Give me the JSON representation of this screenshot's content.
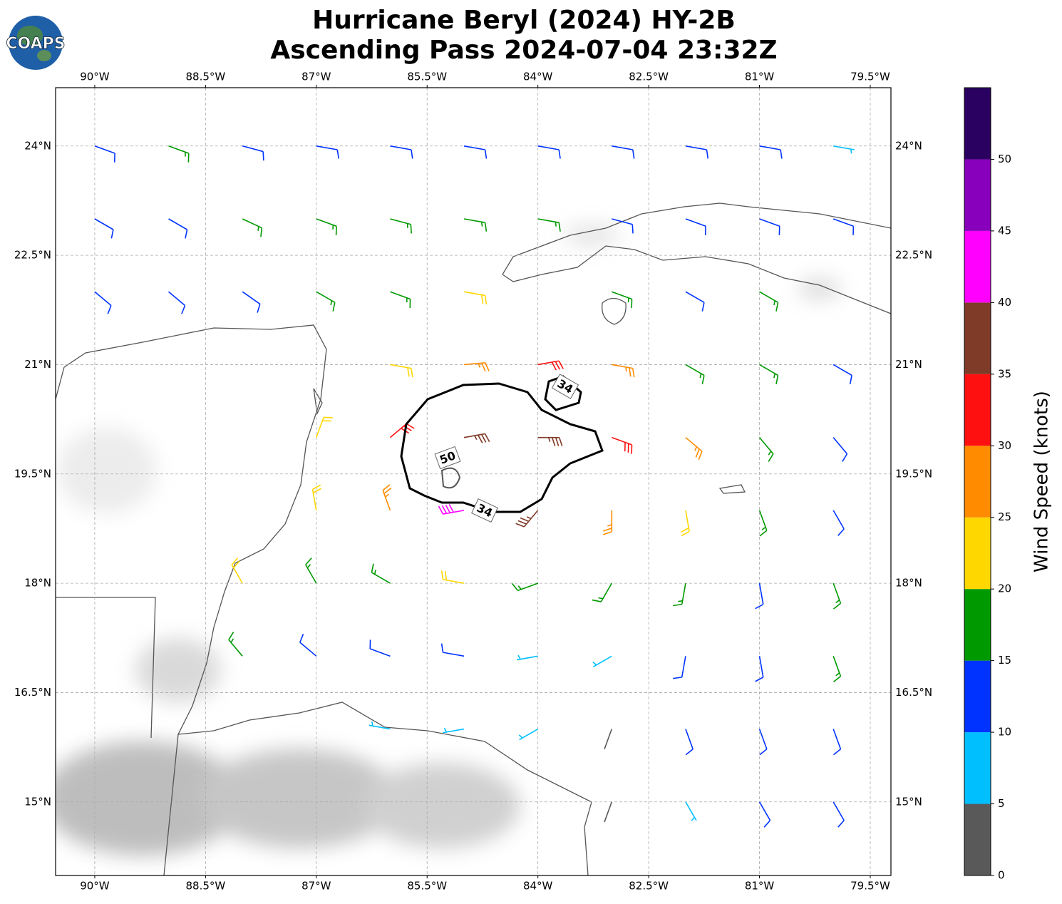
{
  "title": [
    "Hurricane Beryl (2024) HY-2B",
    "Ascending Pass 2024-07-04 23:32Z"
  ],
  "logo": "COAPS",
  "map": {
    "xlim": [
      -90.53,
      -79.22
    ],
    "ylim": [
      13.99,
      24.8
    ],
    "grid": true,
    "xticks": [
      {
        "value": -90,
        "label": "90°W"
      },
      {
        "value": -88.5,
        "label": "88.5°W"
      },
      {
        "value": -87,
        "label": "87°W"
      },
      {
        "value": -85.5,
        "label": "85.5°W"
      },
      {
        "value": -84,
        "label": "84°W"
      },
      {
        "value": -82.5,
        "label": "82.5°W"
      },
      {
        "value": -81,
        "label": "81°W"
      },
      {
        "value": -79.5,
        "label": "79.5°W"
      }
    ],
    "yticks": [
      {
        "value": 15,
        "label": "15°N"
      },
      {
        "value": 16.5,
        "label": "16.5°N"
      },
      {
        "value": 18,
        "label": "18°N"
      },
      {
        "value": 19.5,
        "label": "19.5°N"
      },
      {
        "value": 21,
        "label": "21°N"
      },
      {
        "value": 22.5,
        "label": "22.5°N"
      },
      {
        "value": 24,
        "label": "24°N"
      }
    ]
  },
  "barbs": {
    "lon": [
      -90,
      -89,
      -88,
      -87,
      -86,
      -85,
      -84,
      -83,
      -82,
      -81,
      -80,
      -90,
      -89,
      -88,
      -87,
      -86,
      -85,
      -84,
      -83,
      -82,
      -81,
      -80,
      -90,
      -89,
      -88,
      -87,
      -86,
      -85,
      -83,
      -82,
      -81,
      -86,
      -85,
      -84,
      -83,
      -82,
      -81,
      -80,
      -87,
      -86,
      -85,
      -84,
      -83,
      -82,
      -81,
      -80,
      -87,
      -86,
      -85,
      -84,
      -83,
      -82,
      -81,
      -80,
      -88,
      -87,
      -86,
      -85,
      -84,
      -83,
      -82,
      -81,
      -80,
      -88,
      -87,
      -86,
      -85,
      -84,
      -83,
      -82,
      -81,
      -80,
      -86,
      -85,
      -84,
      -83,
      -82,
      -81,
      -80,
      -83,
      -82,
      -81,
      -80
    ],
    "lat": [
      24,
      24,
      24,
      24,
      24,
      24,
      24,
      24,
      24,
      24,
      24,
      23,
      23,
      23,
      23,
      23,
      23,
      23,
      23,
      23,
      23,
      23,
      22,
      22,
      22,
      22,
      22,
      22,
      22,
      22,
      22,
      21,
      21,
      21,
      21,
      21,
      21,
      21,
      20,
      20,
      20,
      20,
      20,
      20,
      20,
      20,
      19,
      19,
      19,
      19,
      19,
      19,
      19,
      19,
      18,
      18,
      18,
      18,
      18,
      18,
      18,
      18,
      18,
      17,
      17,
      17,
      17,
      17,
      17,
      17,
      17,
      17,
      16,
      16,
      16,
      16,
      16,
      16,
      16,
      15,
      15,
      15,
      15
    ],
    "speed": [
      12,
      17,
      12,
      12,
      12,
      12,
      12,
      12,
      12,
      12,
      7,
      12,
      12,
      17,
      17,
      17,
      17,
      17,
      12,
      12,
      12,
      12,
      12,
      12,
      12,
      17,
      17,
      22,
      17,
      12,
      17,
      22,
      27,
      32,
      27,
      17,
      17,
      12,
      22,
      32,
      37,
      37,
      32,
      27,
      17,
      12,
      22,
      27,
      42,
      37,
      27,
      22,
      17,
      12,
      22,
      17,
      17,
      22,
      17,
      17,
      17,
      12,
      17,
      17,
      12,
      12,
      12,
      7,
      7,
      12,
      12,
      17,
      7,
      7,
      7,
      3,
      12,
      12,
      12,
      3,
      7,
      12,
      12
    ],
    "direction": [
      110,
      110,
      105,
      100,
      100,
      100,
      100,
      100,
      100,
      100,
      100,
      120,
      120,
      115,
      110,
      105,
      100,
      100,
      105,
      110,
      110,
      110,
      130,
      130,
      125,
      120,
      110,
      100,
      110,
      120,
      120,
      100,
      85,
      80,
      100,
      120,
      120,
      120,
      20,
      50,
      80,
      90,
      110,
      130,
      140,
      140,
      350,
      340,
      260,
      220,
      180,
      170,
      160,
      150,
      330,
      330,
      300,
      280,
      250,
      210,
      190,
      170,
      160,
      320,
      310,
      290,
      280,
      260,
      240,
      190,
      170,
      160,
      280,
      260,
      240,
      200,
      160,
      160,
      160,
      200,
      150,
      150,
      150
    ]
  },
  "contour_labels": [
    34,
    50,
    34
  ],
  "colorbar": {
    "label": "Wind Speed (knots)",
    "bounds": [
      0,
      5,
      10,
      15,
      20,
      25,
      30,
      35,
      40,
      45,
      50,
      55
    ],
    "colors": [
      "#595959",
      "#00bfff",
      "#0033ff",
      "#009900",
      "#ffd700",
      "#ff8c00",
      "#ff1010",
      "#7f3a28",
      "#ff00ff",
      "#8800bb",
      "#2a0060"
    ],
    "ticks": [
      0,
      5,
      10,
      15,
      20,
      25,
      30,
      35,
      40,
      45,
      50
    ]
  }
}
